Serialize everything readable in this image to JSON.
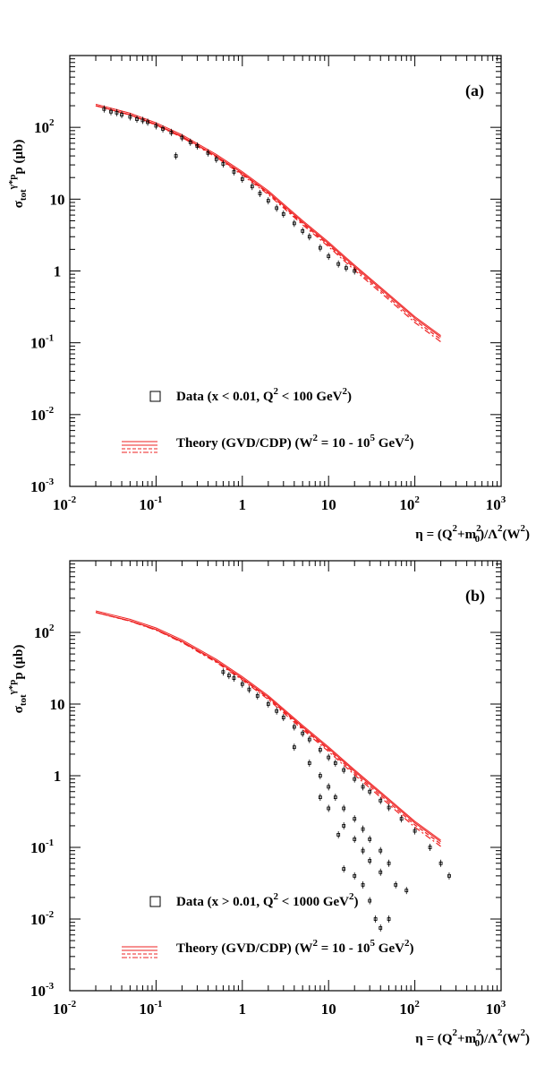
{
  "chart_data": [
    {
      "type": "scatter",
      "panel_label": "(a)",
      "ylabel": {
        "base": "σ",
        "sub": "tot",
        "sup": "γ*p",
        "rest": "p (μb)"
      },
      "xlabel": {
        "t1": "η = (Q",
        "s1": "2",
        "t2": "+m",
        "s2": "2",
        "sub0": "0",
        "t3": ")/Λ",
        "s3": "2",
        "t4": "(W",
        "s4": "2",
        "t5": ")"
      },
      "x_ticks": [
        {
          "b": "10",
          "e": "-2"
        },
        {
          "b": "10",
          "e": "-1"
        },
        {
          "b": "1",
          "e": ""
        },
        {
          "b": "10",
          "e": ""
        },
        {
          "b": "10",
          "e": "2"
        },
        {
          "b": "10",
          "e": "3"
        }
      ],
      "y_ticks": [
        {
          "b": "10",
          "e": "-3"
        },
        {
          "b": "10",
          "e": "-2"
        },
        {
          "b": "10",
          "e": "-1"
        },
        {
          "b": "1",
          "e": ""
        },
        {
          "b": "10",
          "e": ""
        },
        {
          "b": "10",
          "e": "2"
        }
      ],
      "x_scale": "log",
      "y_scale": "log",
      "xlim": [
        0.01,
        1000
      ],
      "ylim": [
        0.001,
        1000
      ],
      "legend": {
        "data": {
          "t1": "Data (x < 0.01, Q",
          "s1": "2",
          "t2": " < 100 GeV",
          "s2": "2",
          "t3": ")"
        },
        "theory": {
          "t1": "Theory (GVD/CDP) (W",
          "s1": "2",
          "t2": " = 10 - 10",
          "s2": "5",
          "t3": " GeV",
          "s3": "2",
          "t4": ")"
        }
      },
      "series": [
        {
          "marker": "square",
          "points": [
            [
              0.025,
              180
            ],
            [
              0.03,
              165
            ],
            [
              0.035,
              160
            ],
            [
              0.04,
              150
            ],
            [
              0.05,
              140
            ],
            [
              0.06,
              130
            ],
            [
              0.07,
              125
            ],
            [
              0.08,
              118
            ],
            [
              0.1,
              105
            ],
            [
              0.12,
              95
            ],
            [
              0.15,
              85
            ],
            [
              0.17,
              40
            ],
            [
              0.2,
              72
            ],
            [
              0.25,
              62
            ],
            [
              0.3,
              55
            ],
            [
              0.4,
              44
            ],
            [
              0.5,
              36
            ],
            [
              0.6,
              31
            ],
            [
              0.8,
              24
            ],
            [
              1.0,
              19
            ],
            [
              1.3,
              15
            ],
            [
              1.6,
              12
            ],
            [
              2.0,
              9.5
            ],
            [
              2.5,
              7.5
            ],
            [
              3.0,
              6.2
            ],
            [
              4.0,
              4.6
            ],
            [
              5.0,
              3.6
            ],
            [
              6.0,
              3.0
            ],
            [
              8.0,
              2.1
            ],
            [
              10,
              1.6
            ],
            [
              13,
              1.25
            ],
            [
              16,
              1.1
            ],
            [
              20,
              1.0
            ]
          ]
        }
      ],
      "theory_points": [
        [
          0.02,
          200
        ],
        [
          0.05,
          150
        ],
        [
          0.1,
          110
        ],
        [
          0.2,
          75
        ],
        [
          0.5,
          40
        ],
        [
          1.0,
          23
        ],
        [
          2.0,
          12.5
        ],
        [
          5.0,
          4.8
        ],
        [
          10,
          2.4
        ],
        [
          20,
          1.15
        ],
        [
          50,
          0.45
        ],
        [
          100,
          0.22
        ],
        [
          200,
          0.12
        ]
      ],
      "colors": {
        "theory": "#ee2222",
        "data": "#000000"
      }
    },
    {
      "type": "scatter",
      "panel_label": "(b)",
      "ylabel": {
        "base": "σ",
        "sub": "tot",
        "sup": "γ*p",
        "rest": "p (μb)"
      },
      "xlabel": {
        "t1": "η = (Q",
        "s1": "2",
        "t2": "+m",
        "s2": "2",
        "sub0": "0",
        "t3": ")/Λ",
        "s3": "2",
        "t4": "(W",
        "s4": "2",
        "t5": ")"
      },
      "x_ticks": [
        {
          "b": "10",
          "e": "-2"
        },
        {
          "b": "10",
          "e": "-1"
        },
        {
          "b": "1",
          "e": ""
        },
        {
          "b": "10",
          "e": ""
        },
        {
          "b": "10",
          "e": "2"
        },
        {
          "b": "10",
          "e": "3"
        }
      ],
      "y_ticks": [
        {
          "b": "10",
          "e": "-3"
        },
        {
          "b": "10",
          "e": "-2"
        },
        {
          "b": "10",
          "e": "-1"
        },
        {
          "b": "1",
          "e": ""
        },
        {
          "b": "10",
          "e": ""
        },
        {
          "b": "10",
          "e": "2"
        }
      ],
      "x_scale": "log",
      "y_scale": "log",
      "xlim": [
        0.01,
        1000
      ],
      "ylim": [
        0.001,
        1000
      ],
      "legend": {
        "data": {
          "t1": "Data (x > 0.01, Q",
          "s1": "2",
          "t2": " < 1000 GeV",
          "s2": "2",
          "t3": ")"
        },
        "theory": {
          "t1": "Theory (GVD/CDP) (W",
          "s1": "2",
          "t2": " = 10 - 10",
          "s2": "5",
          "t3": " GeV",
          "s3": "2",
          "t4": ")"
        }
      },
      "series": [
        {
          "marker": "square",
          "points": [
            [
              0.6,
              28
            ],
            [
              0.7,
              25
            ],
            [
              0.8,
              23
            ],
            [
              1.0,
              19
            ],
            [
              1.2,
              16
            ],
            [
              1.5,
              13
            ],
            [
              2.0,
              10
            ],
            [
              2.5,
              8
            ],
            [
              3.0,
              6.5
            ],
            [
              4.0,
              4.8
            ],
            [
              5.0,
              3.9
            ],
            [
              6.0,
              3.2
            ],
            [
              8.0,
              2.3
            ],
            [
              10,
              1.8
            ],
            [
              12,
              1.5
            ],
            [
              15,
              1.2
            ],
            [
              20,
              0.9
            ],
            [
              25,
              0.7
            ],
            [
              30,
              0.6
            ],
            [
              40,
              0.45
            ],
            [
              50,
              0.36
            ],
            [
              70,
              0.25
            ],
            [
              100,
              0.17
            ],
            [
              150,
              0.1
            ],
            [
              200,
              0.06
            ],
            [
              250,
              0.04
            ],
            [
              4,
              2.5
            ],
            [
              6,
              1.5
            ],
            [
              8,
              1.0
            ],
            [
              10,
              0.7
            ],
            [
              12,
              0.5
            ],
            [
              15,
              0.35
            ],
            [
              20,
              0.25
            ],
            [
              25,
              0.18
            ],
            [
              30,
              0.13
            ],
            [
              40,
              0.09
            ],
            [
              50,
              0.06
            ],
            [
              8,
              0.5
            ],
            [
              10,
              0.35
            ],
            [
              15,
              0.2
            ],
            [
              20,
              0.13
            ],
            [
              25,
              0.09
            ],
            [
              30,
              0.065
            ],
            [
              40,
              0.045
            ],
            [
              13,
              0.15
            ],
            [
              15,
              0.05
            ],
            [
              20,
              0.04
            ],
            [
              25,
              0.03
            ],
            [
              30,
              0.018
            ],
            [
              35,
              0.01
            ],
            [
              40,
              0.0075
            ],
            [
              50,
              0.01
            ],
            [
              60,
              0.03
            ],
            [
              80,
              0.025
            ]
          ]
        }
      ],
      "theory_points": [
        [
          0.02,
          190
        ],
        [
          0.05,
          145
        ],
        [
          0.1,
          110
        ],
        [
          0.2,
          75
        ],
        [
          0.5,
          40
        ],
        [
          1.0,
          23
        ],
        [
          2.0,
          12.5
        ],
        [
          5.0,
          4.8
        ],
        [
          10,
          2.4
        ],
        [
          20,
          1.15
        ],
        [
          50,
          0.45
        ],
        [
          100,
          0.22
        ],
        [
          200,
          0.12
        ]
      ],
      "colors": {
        "theory": "#ee2222",
        "data": "#000000"
      }
    }
  ]
}
